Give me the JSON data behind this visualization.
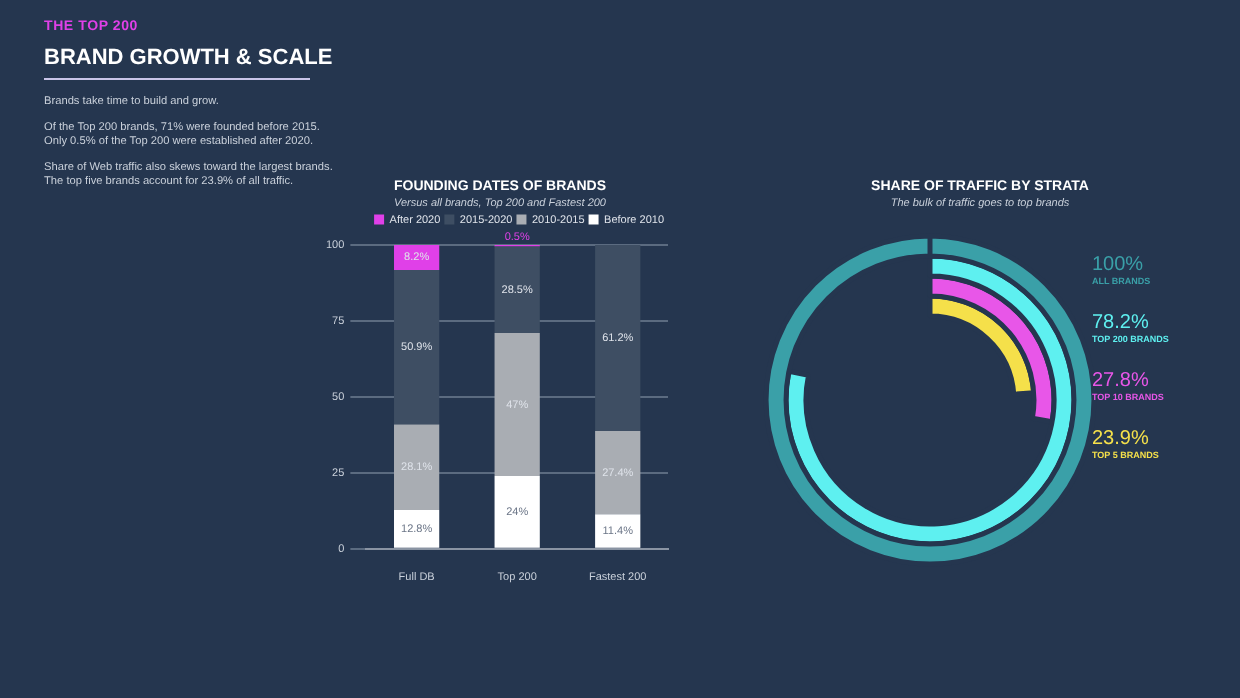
{
  "chart_data": [
    {
      "type": "other",
      "subtitle": "THE TOP 200",
      "title": "BRAND GROWTH & SCALE",
      "annotations": [
        "Brands take time to build and grow.",
        "Of the Top 200 brands, 71% were founded before 2015. Only 0.5% of the Top 200 were established after 2020.",
        "Share of Web traffic also skews toward the largest brands. The top five brands account for 23.9% of all traffic."
      ]
    },
    {
      "type": "bar",
      "stacked": true,
      "title": "FOUNDING DATES OF BRANDS",
      "subtitle": "Versus all brands, Top 200 and Fastest 200",
      "categories": [
        "Full DB",
        "Top 200",
        "Fastest 200"
      ],
      "ylim": [
        0,
        100
      ],
      "yticks": [
        0,
        25,
        50,
        75,
        100
      ],
      "grid": "y",
      "legend": "top right",
      "series": [
        {
          "name": "Before 2010",
          "color": "#ffffff",
          "values": [
            12.8,
            24,
            11.4
          ],
          "value_labels": [
            "12.8%",
            "24%",
            "11.4%"
          ]
        },
        {
          "name": "2010-2015",
          "color": "#a9adb3",
          "values": [
            28.1,
            47,
            27.4
          ],
          "value_labels": [
            "28.1%",
            "47%",
            "27.4%"
          ]
        },
        {
          "name": "2015-2020",
          "color": "#3e4e63",
          "values": [
            50.9,
            28.5,
            61.2
          ],
          "value_labels": [
            "50.9%",
            "28.5%",
            "61.2%"
          ]
        },
        {
          "name": "After 2020",
          "color": "#e040e8",
          "values": [
            8.2,
            0.5,
            null
          ],
          "value_labels": [
            "8.2%",
            "0.5%",
            null
          ]
        }
      ]
    },
    {
      "type": "other",
      "title": "SHARE OF TRAFFIC BY STRATA",
      "subtitle": "The bulk of traffic goes to top brands",
      "categories": [
        "ALL BRANDS",
        "TOP 200 BRANDS",
        "TOP 10 BRANDS",
        "TOP 5 BRANDS"
      ],
      "values": [
        100,
        78.2,
        27.8,
        23.9
      ],
      "value_labels": [
        "100%",
        "78.2%",
        "27.8%",
        "23.9%"
      ],
      "colors": [
        "#3aa0a8",
        "#5ef0f0",
        "#e856e8",
        "#f5e04a"
      ]
    }
  ]
}
